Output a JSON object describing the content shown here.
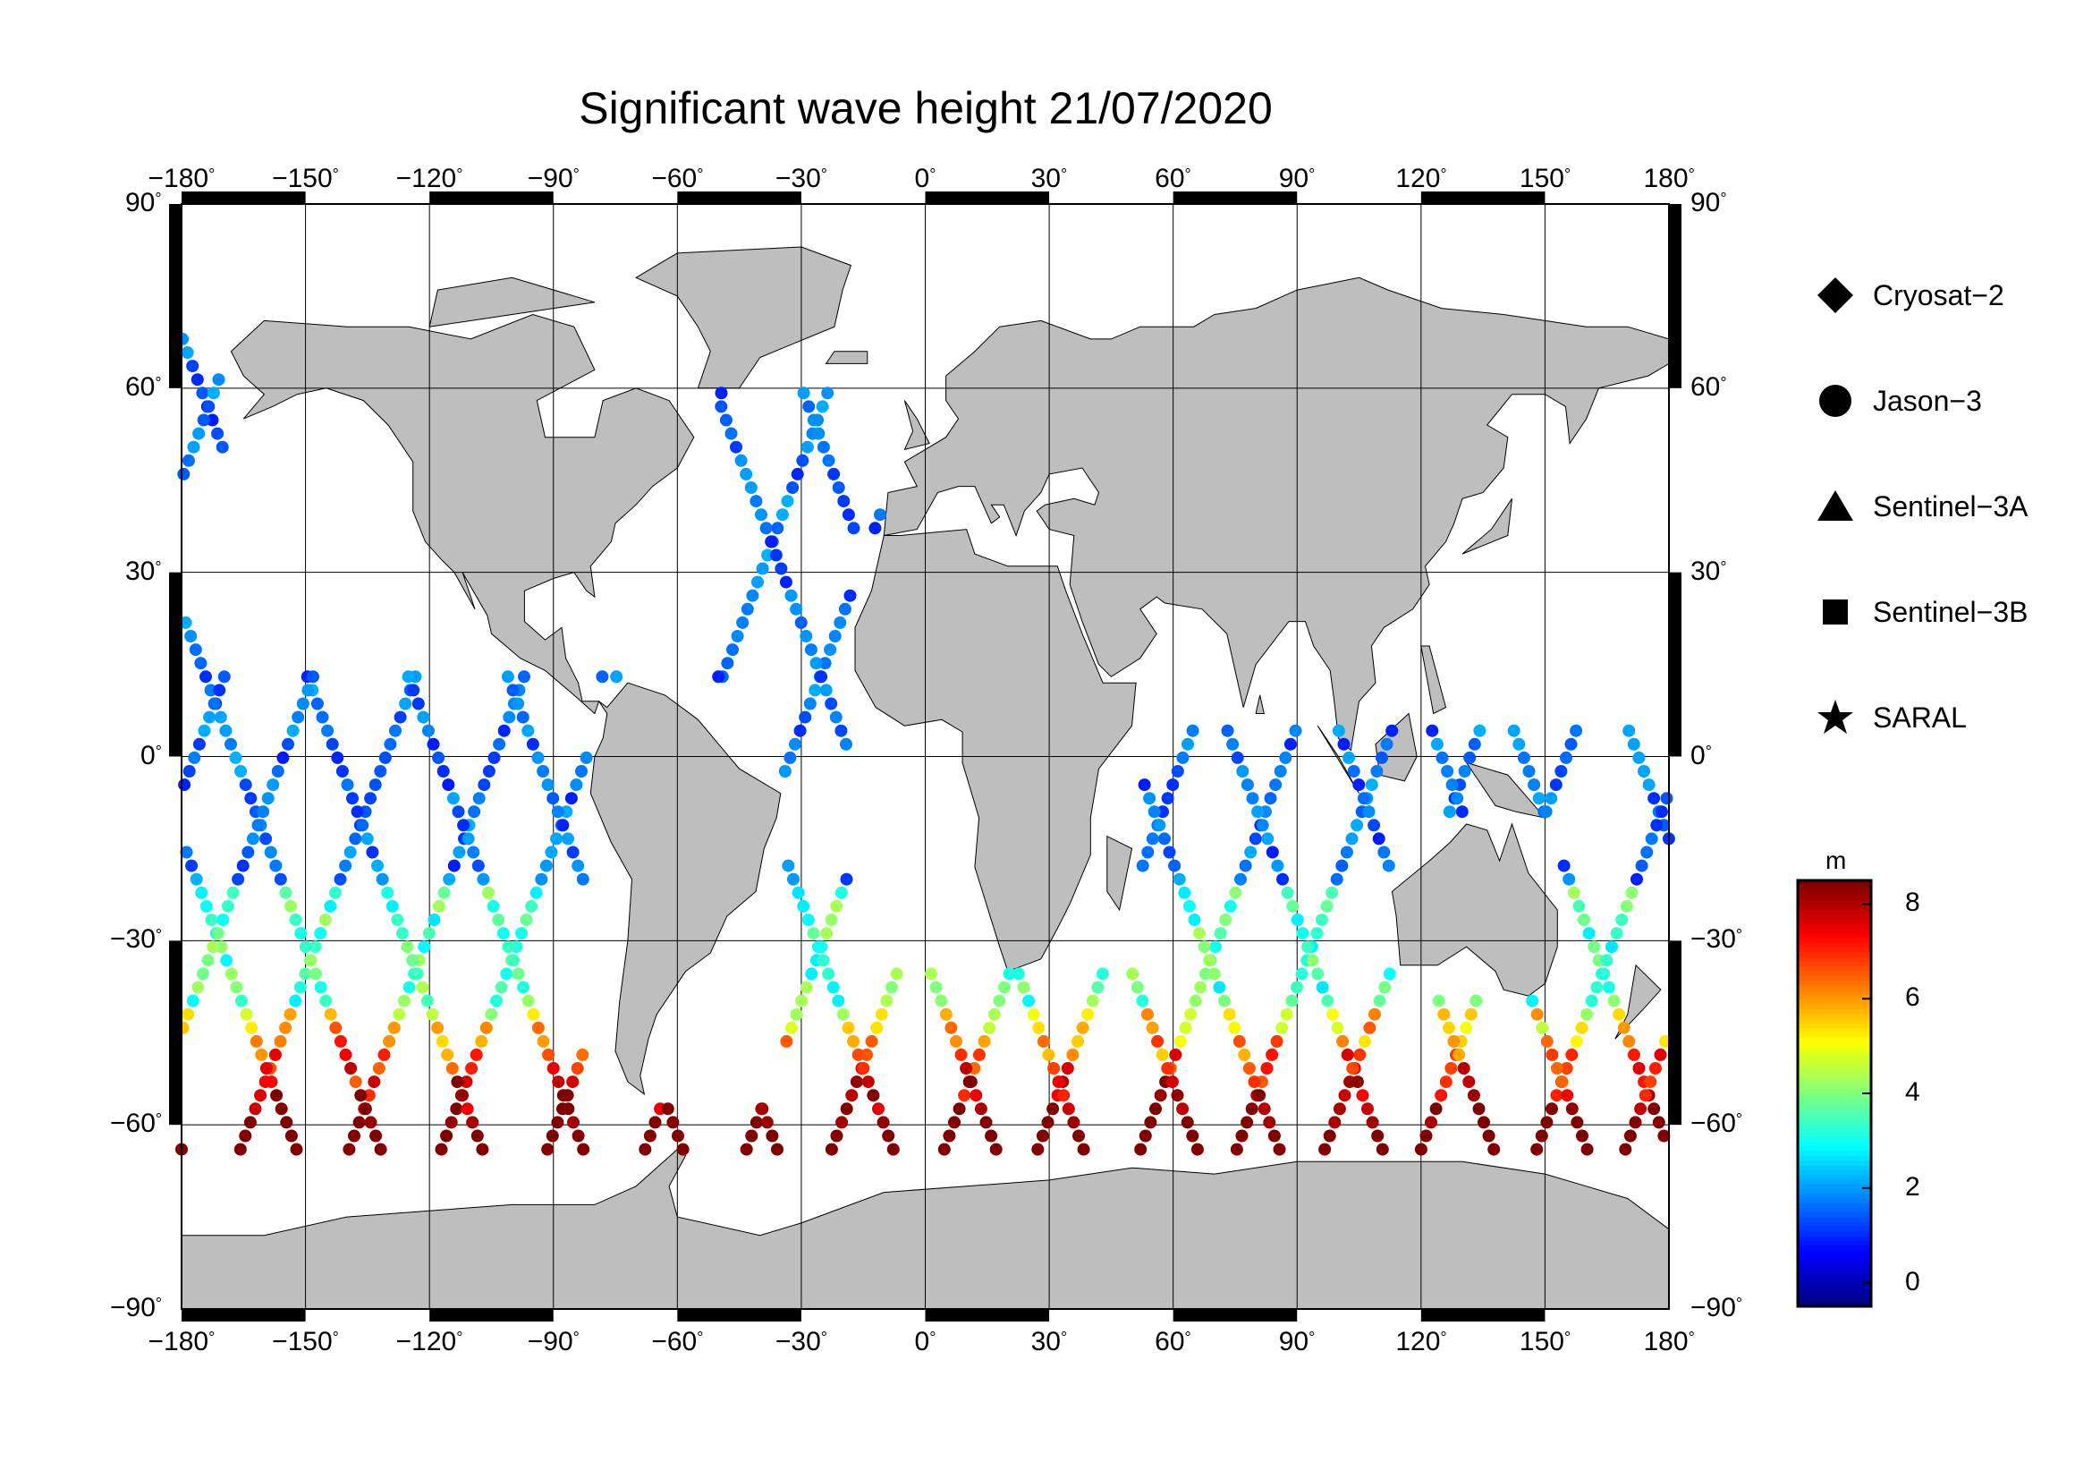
{
  "title": "Significant wave height 21/07/2020",
  "axes": {
    "lon_ticks": [
      "−180",
      "−150",
      "−120",
      "−90",
      "−60",
      "−30",
      "0",
      "30",
      "60",
      "90",
      "120",
      "150",
      "180"
    ],
    "lat_ticks": [
      "90",
      "60",
      "30",
      "0",
      "−30",
      "−60",
      "−90"
    ],
    "lon_range": [
      -180,
      180
    ],
    "lat_range": [
      -90,
      90
    ],
    "gridlines": true,
    "degree_symbol": "°"
  },
  "legend": {
    "position": "right",
    "items": [
      {
        "label": "Cryosat−2",
        "symbol": "diamond-icon"
      },
      {
        "label": "Jason−3",
        "symbol": "circle-icon"
      },
      {
        "label": "Sentinel−3A",
        "symbol": "triangle-icon"
      },
      {
        "label": "Sentinel−3B",
        "symbol": "square-icon"
      },
      {
        "label": "SARAL",
        "symbol": "star-icon"
      }
    ]
  },
  "colorbar": {
    "unit": "m",
    "ticks": [
      "8",
      "6",
      "4",
      "2",
      "0"
    ],
    "range": [
      -0.5,
      8.5
    ],
    "colormap": "jet"
  },
  "colors": {
    "land": "#bebebe",
    "ocean": "#ffffff",
    "grid": "#000000"
  }
}
